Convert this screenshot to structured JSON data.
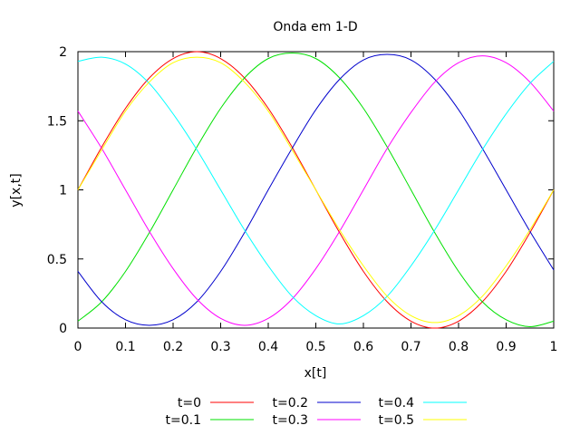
{
  "chart_data": {
    "type": "line",
    "title": "Onda em 1-D",
    "xlabel": "x[t]",
    "ylabel": "y[x,t]",
    "xlim": [
      0,
      1
    ],
    "ylim": [
      0,
      2
    ],
    "xticks": [
      "0",
      "0.1",
      "0.2",
      "0.3",
      "0.4",
      "0.5",
      "0.6",
      "0.7",
      "0.8",
      "0.9",
      "1"
    ],
    "yticks": [
      "0",
      "0.5",
      "1",
      "1.5",
      "2"
    ],
    "grid": false,
    "legend_position": "bottom",
    "x": [
      0,
      0.05,
      0.1,
      0.15,
      0.2,
      0.25,
      0.3,
      0.35,
      0.4,
      0.45,
      0.5,
      0.55,
      0.6,
      0.65,
      0.7,
      0.75,
      0.8,
      0.85,
      0.9,
      0.95,
      1
    ],
    "series": [
      {
        "name": "t=0",
        "color": "#ff0000",
        "values": [
          1.0,
          1.31,
          1.59,
          1.81,
          1.95,
          2.0,
          1.95,
          1.81,
          1.59,
          1.31,
          1.0,
          0.69,
          0.41,
          0.19,
          0.05,
          0.0,
          0.05,
          0.19,
          0.41,
          0.69,
          1.0
        ]
      },
      {
        "name": "t=0.1",
        "color": "#00e000",
        "values": [
          0.05,
          0.19,
          0.41,
          0.69,
          1.0,
          1.31,
          1.59,
          1.81,
          1.95,
          1.99,
          1.95,
          1.81,
          1.59,
          1.31,
          1.0,
          0.69,
          0.41,
          0.19,
          0.06,
          0.01,
          0.05
        ]
      },
      {
        "name": "t=0.2",
        "color": "#0000cc",
        "values": [
          0.41,
          0.19,
          0.06,
          0.02,
          0.06,
          0.19,
          0.41,
          0.69,
          1.0,
          1.3,
          1.58,
          1.8,
          1.94,
          1.98,
          1.94,
          1.8,
          1.58,
          1.3,
          1.0,
          0.7,
          0.42
        ]
      },
      {
        "name": "t=0.3",
        "color": "#ff00ff",
        "values": [
          1.57,
          1.3,
          1.0,
          0.7,
          0.43,
          0.21,
          0.07,
          0.02,
          0.07,
          0.21,
          0.43,
          0.7,
          1.0,
          1.3,
          1.56,
          1.78,
          1.92,
          1.97,
          1.92,
          1.78,
          1.57
        ]
      },
      {
        "name": "t=0.4",
        "color": "#00ffff",
        "values": [
          1.93,
          1.96,
          1.91,
          1.77,
          1.55,
          1.29,
          1.0,
          0.71,
          0.45,
          0.23,
          0.09,
          0.03,
          0.09,
          0.23,
          0.45,
          0.71,
          1.0,
          1.29,
          1.55,
          1.77,
          1.93
        ]
      },
      {
        "name": "t=0.5",
        "color": "#ffff00",
        "values": [
          1.0,
          1.29,
          1.57,
          1.78,
          1.92,
          1.96,
          1.92,
          1.78,
          1.57,
          1.29,
          1.0,
          0.71,
          0.45,
          0.23,
          0.09,
          0.04,
          0.09,
          0.23,
          0.45,
          0.71,
          1.0
        ]
      }
    ]
  }
}
